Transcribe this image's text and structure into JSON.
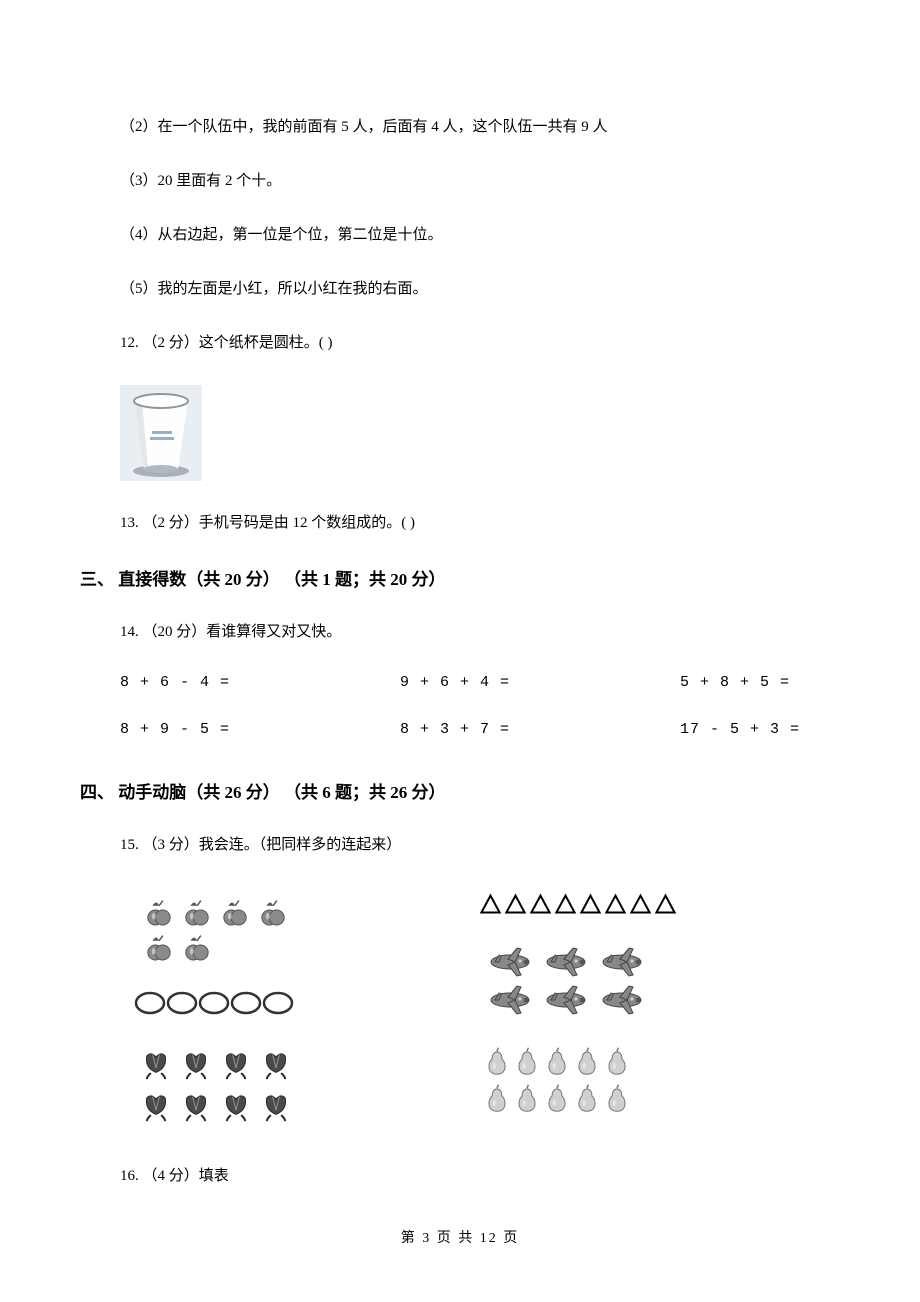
{
  "statements": {
    "s2": "（2）在一个队伍中，我的前面有 5 人，后面有 4 人，这个队伍一共有 9 人",
    "s3": "（3）20 里面有 2 个十。",
    "s4": "（4）从右边起，第一位是个位，第二位是十位。",
    "s5": "（5）我的左面是小红，所以小红在我的右面。"
  },
  "q12": "12.   （2 分）这个纸杯是圆柱。(        )",
  "q13": "13.   （2 分）手机号码是由 12 个数组成的。(        )",
  "section3": {
    "heading": "三、  直接得数（共 20 分）   （共 1 题；共 20 分）",
    "q14_intro": "14.   （20 分）看谁算得又对又快。",
    "problems": [
      "8 + 6 - 4 =",
      "9 + 6 + 4 =",
      "5 + 8 + 5 =",
      "8 + 9 - 5 =",
      "8 + 3 + 7 =",
      "17 - 5 + 3 ="
    ]
  },
  "section4": {
    "heading": "四、  动手动脑（共 26 分）   （共 6 题；共 26 分）",
    "q15_intro": "15.   （3 分）我会连。（把同样多的连起来）",
    "q16_intro": "16.   （4 分）填表"
  },
  "cup": {
    "width": 82,
    "height": 96,
    "bg_color": "#e9eef3",
    "body_color": "#fefefe",
    "side_dark": "#c9ced4",
    "rim_color": "#8e969f",
    "base_color": "#b0b8c0",
    "text_color": "#6b8fb3",
    "shadow": "#a9b0b7"
  },
  "matching": {
    "left": [
      {
        "type": "apples",
        "count": 6,
        "rows": 2,
        "cols": 4,
        "row_counts": [
          4,
          2
        ]
      },
      {
        "type": "ovals",
        "count": 5,
        "rows": 1,
        "cols": 5
      },
      {
        "type": "tulips",
        "count": 8,
        "rows": 2,
        "cols": 4
      }
    ],
    "right": [
      {
        "type": "triangles",
        "count": 8,
        "rows": 1,
        "cols": 8
      },
      {
        "type": "planes",
        "count": 6,
        "rows": 2,
        "cols": 3
      },
      {
        "type": "pears",
        "count": 10,
        "rows": 2,
        "cols": 5
      }
    ],
    "colors": {
      "apple_fill": "#8a8a8a",
      "apple_stroke": "#555555",
      "oval_fill": "#ffffff",
      "oval_stroke": "#333333",
      "tulip_fill": "#4a4a4a",
      "tulip_stroke": "#2a2a2a",
      "triangle_fill": "#ffffff",
      "triangle_stroke": "#000000",
      "plane_fill": "#888888",
      "plane_stroke": "#444444",
      "pear_fill": "#d0d0d0",
      "pear_stroke": "#777777"
    }
  },
  "footer": "第  3  页  共  12  页"
}
